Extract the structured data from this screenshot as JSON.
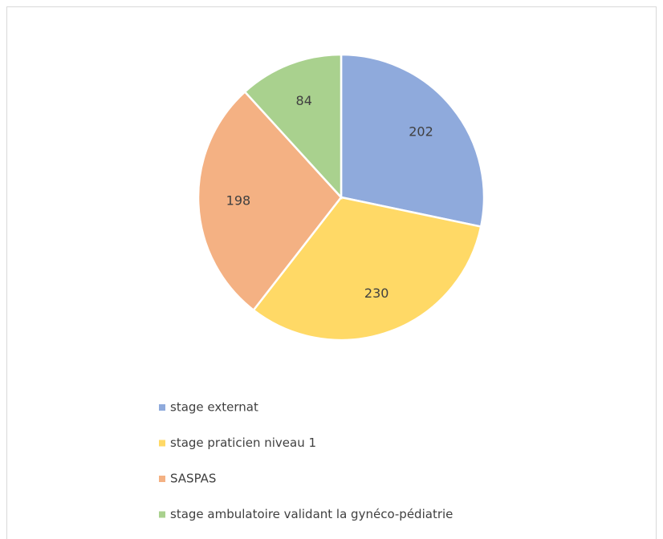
{
  "chart_data": {
    "type": "pie",
    "categories": [
      "stage externat",
      "stage praticien niveau 1",
      "SASPAS",
      "stage ambulatoire validant la gynéco-pédiatrie"
    ],
    "values": [
      202,
      230,
      198,
      84
    ],
    "colors": [
      "#8faadc",
      "#ffd966",
      "#f4b183",
      "#a9d18e"
    ],
    "legend": "bottom-left"
  }
}
